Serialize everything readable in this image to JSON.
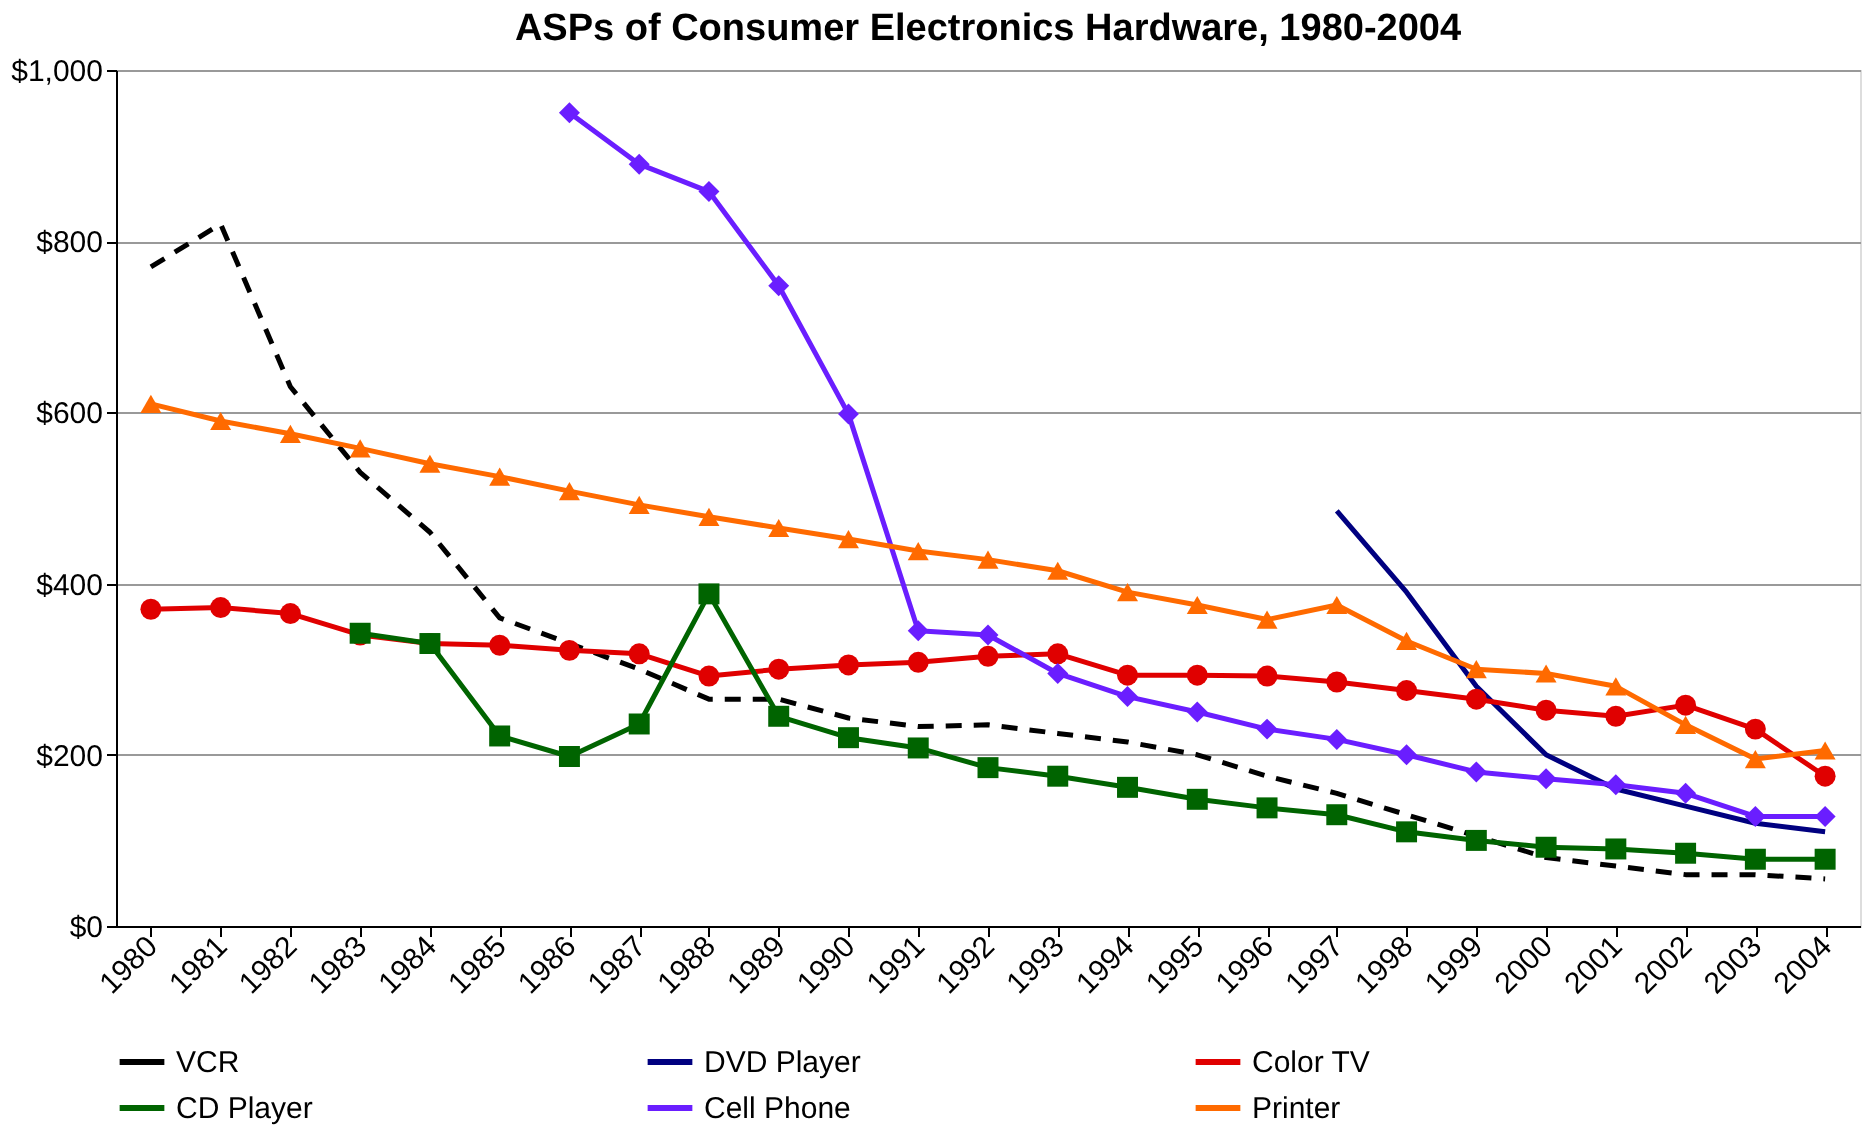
{
  "chart_data": {
    "type": "line",
    "title": "ASPs of Consumer Electronics Hardware, 1980-2004",
    "categories": [
      "1980",
      "1981",
      "1982",
      "1983",
      "1984",
      "1985",
      "1986",
      "1987",
      "1988",
      "1989",
      "1990",
      "1991",
      "1992",
      "1993",
      "1994",
      "1995",
      "1996",
      "1997",
      "1998",
      "1999",
      "2000",
      "2001",
      "2002",
      "2003",
      "2004"
    ],
    "series": [
      {
        "name": "VCR",
        "color": "#000000",
        "line_style": "dashed",
        "marker": "none",
        "values": [
          770,
          820,
          630,
          530,
          460,
          360,
          330,
          300,
          265,
          265,
          243,
          233,
          235,
          225,
          215,
          200,
          175,
          155,
          130,
          105,
          80,
          70,
          60,
          60,
          55
        ]
      },
      {
        "name": "DVD Player",
        "color": "#000080",
        "line_style": "solid",
        "marker": "none",
        "values": [
          null,
          null,
          null,
          null,
          null,
          null,
          null,
          null,
          null,
          null,
          null,
          null,
          null,
          null,
          null,
          null,
          null,
          485,
          390,
          280,
          200,
          160,
          140,
          120,
          110
        ]
      },
      {
        "name": "Color TV",
        "color": "#e00000",
        "line_style": "solid",
        "marker": "circle",
        "values": [
          370,
          372,
          365,
          340,
          330,
          328,
          322,
          318,
          292,
          300,
          305,
          308,
          315,
          318,
          293,
          293,
          292,
          285,
          275,
          265,
          252,
          245,
          258,
          230,
          175
        ]
      },
      {
        "name": "CD Player",
        "color": "#006400",
        "line_style": "solid",
        "marker": "square",
        "values": [
          null,
          null,
          null,
          342,
          330,
          222,
          198,
          236,
          388,
          245,
          220,
          208,
          185,
          175,
          162,
          148,
          138,
          130,
          110,
          100,
          92,
          90,
          85,
          78,
          78
        ]
      },
      {
        "name": "Cell Phone",
        "color": "#6a1eff",
        "line_style": "solid",
        "marker": "diamond",
        "values": [
          null,
          null,
          null,
          null,
          null,
          null,
          950,
          890,
          858,
          748,
          598,
          345,
          340,
          295,
          268,
          250,
          230,
          218,
          200,
          180,
          172,
          165,
          155,
          128,
          128
        ]
      },
      {
        "name": "Printer",
        "color": "#ff6a00",
        "line_style": "solid",
        "marker": "triangle",
        "values": [
          610,
          590,
          575,
          558,
          540,
          525,
          508,
          492,
          478,
          465,
          452,
          438,
          428,
          415,
          390,
          375,
          358,
          375,
          333,
          300,
          295,
          280,
          235,
          195,
          205
        ]
      }
    ],
    "ylim": [
      0,
      1000
    ],
    "yticks": [
      {
        "value": 0,
        "label": "$0"
      },
      {
        "value": 200,
        "label": "$200"
      },
      {
        "value": 400,
        "label": "$400"
      },
      {
        "value": 600,
        "label": "$600"
      },
      {
        "value": 800,
        "label": "$800"
      },
      {
        "value": 1000,
        "label": "$1,000"
      }
    ],
    "grid": "y",
    "legend": "bottom"
  }
}
